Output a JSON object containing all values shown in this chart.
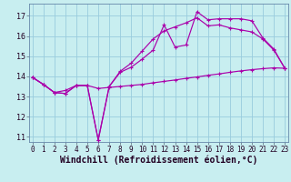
{
  "xlabel": "Windchill (Refroidissement éolien,°C)",
  "background_color": "#c8eef0",
  "line_color": "#aa00aa",
  "grid_color": "#99ccdd",
  "x_ticks": [
    0,
    1,
    2,
    3,
    4,
    5,
    6,
    7,
    8,
    9,
    10,
    11,
    12,
    13,
    14,
    15,
    16,
    17,
    18,
    19,
    20,
    21,
    22,
    23
  ],
  "y_ticks": [
    11,
    12,
    13,
    14,
    15,
    16,
    17
  ],
  "xlim": [
    -0.3,
    23.3
  ],
  "ylim": [
    10.75,
    17.6
  ],
  "line1_y": [
    13.95,
    13.6,
    13.2,
    13.15,
    13.55,
    13.55,
    10.85,
    13.5,
    14.2,
    14.45,
    14.85,
    15.3,
    16.55,
    15.45,
    15.55,
    17.2,
    16.8,
    16.85,
    16.85,
    16.85,
    16.75,
    15.9,
    15.35,
    14.4
  ],
  "line2_y": [
    13.95,
    13.6,
    13.2,
    13.15,
    13.55,
    13.55,
    10.85,
    13.5,
    14.25,
    14.65,
    15.25,
    15.85,
    16.25,
    16.45,
    16.65,
    16.9,
    16.5,
    16.55,
    16.4,
    16.3,
    16.2,
    15.85,
    15.3,
    14.4
  ],
  "line3_y": [
    13.95,
    13.6,
    13.2,
    13.3,
    13.55,
    13.55,
    13.4,
    13.45,
    13.5,
    13.55,
    13.6,
    13.68,
    13.75,
    13.82,
    13.9,
    13.97,
    14.05,
    14.12,
    14.2,
    14.27,
    14.33,
    14.38,
    14.42,
    14.4
  ],
  "marker": "+",
  "markersize": 3.5,
  "markeredgewidth": 0.8,
  "linewidth": 0.85,
  "tick_fontsize": 5.5,
  "xlabel_fontsize": 7.0,
  "xlabel_fontweight": "bold"
}
